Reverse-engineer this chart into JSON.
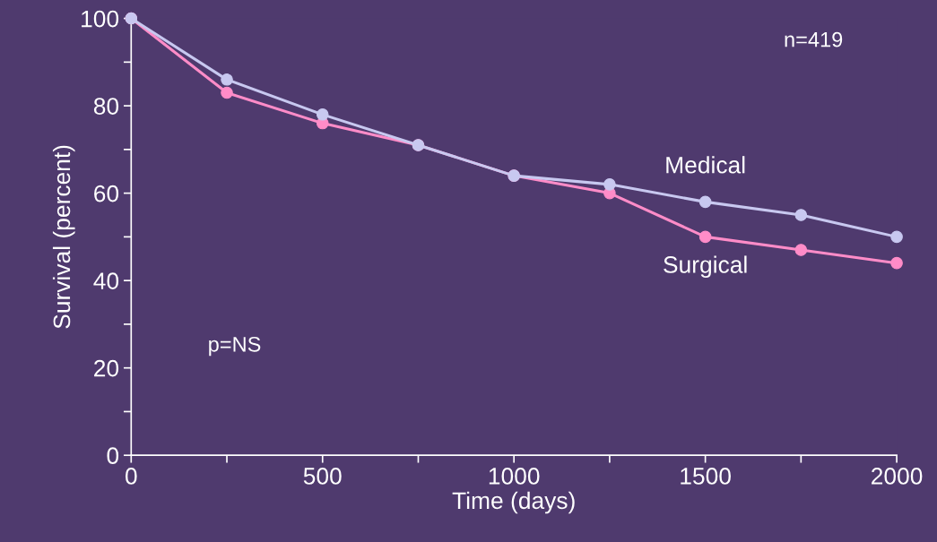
{
  "chart_data": {
    "type": "line",
    "xlabel": "Time (days)",
    "ylabel": "Survival (percent)",
    "x": [
      0,
      250,
      500,
      750,
      1000,
      1250,
      1500,
      1750,
      2000
    ],
    "series": [
      {
        "name": "Medical",
        "color": "#c8c8f0",
        "values": [
          100,
          86,
          78,
          71,
          64,
          62,
          58,
          55,
          50
        ]
      },
      {
        "name": "Surgical",
        "color": "#ff8cc8",
        "values": [
          100,
          83,
          76,
          71,
          64,
          60,
          50,
          47,
          44
        ]
      }
    ],
    "xlim": [
      0,
      2000
    ],
    "ylim": [
      0,
      100
    ],
    "xticks": [
      0,
      {
        "value": 250,
        "label": null
      },
      500,
      {
        "value": 750,
        "label": null
      },
      1000,
      {
        "value": 1250,
        "label": null
      },
      1500,
      {
        "value": 1750,
        "label": null
      },
      2000
    ],
    "yticks": [
      0,
      {
        "value": 10,
        "label": null
      },
      20,
      {
        "value": 30,
        "label": null
      },
      40,
      {
        "value": 50,
        "label": null
      },
      60,
      {
        "value": 70,
        "label": null
      },
      80,
      {
        "value": 90,
        "label": null
      },
      100
    ],
    "annotations": [
      "n=419",
      "p=NS"
    ],
    "marker": "circle",
    "line_style": "solid",
    "grid": false,
    "legend": false
  }
}
